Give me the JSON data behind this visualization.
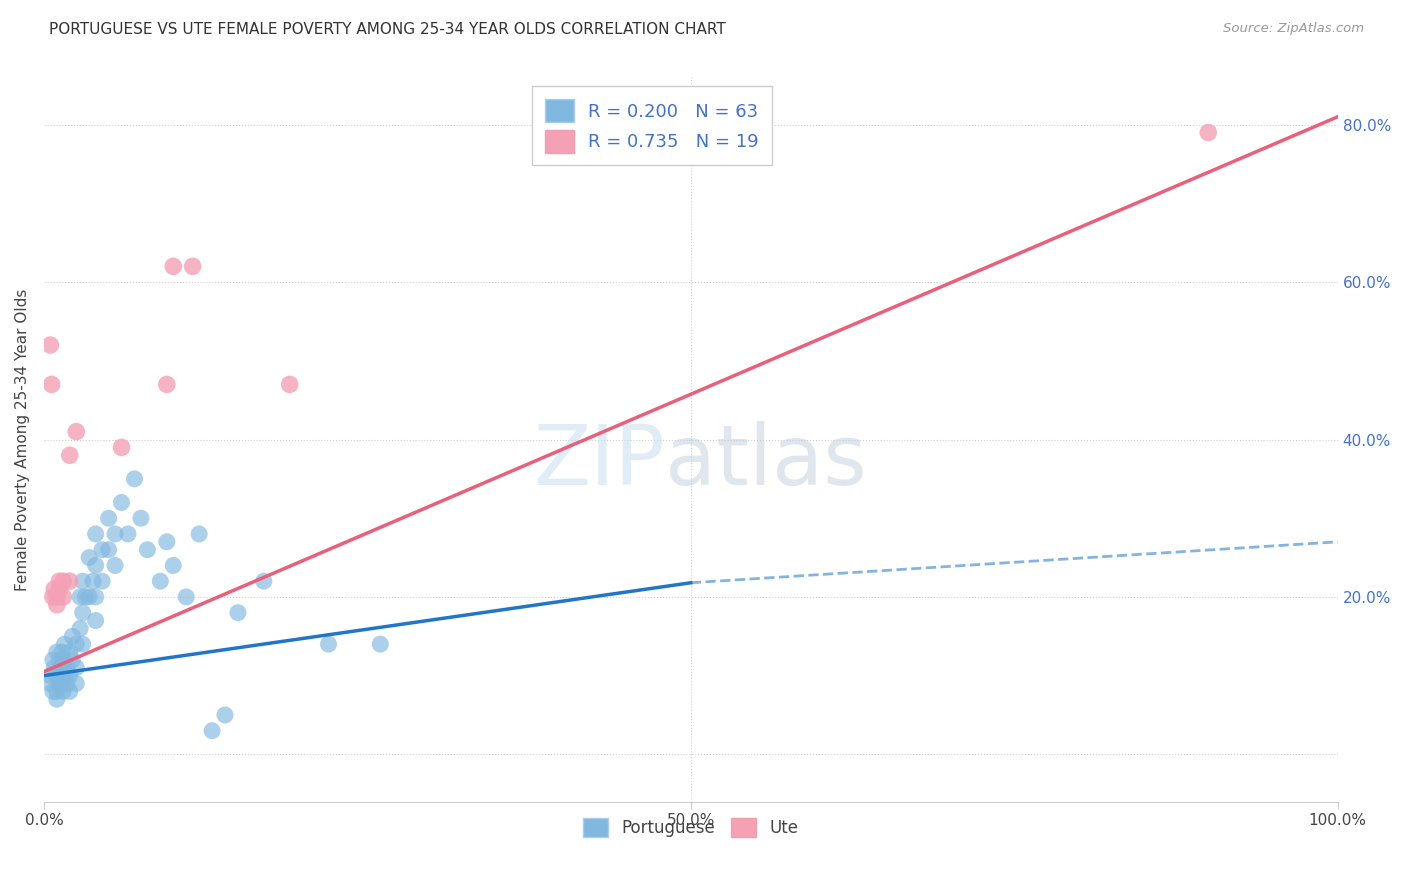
{
  "title": "PORTUGUESE VS UTE FEMALE POVERTY AMONG 25-34 YEAR OLDS CORRELATION CHART",
  "source": "Source: ZipAtlas.com",
  "ylabel": "Female Poverty Among 25-34 Year Olds",
  "watermark_zip": "ZIP",
  "watermark_atlas": "atlas",
  "R_portuguese": 0.2,
  "N_portuguese": 63,
  "R_ute": 0.735,
  "N_ute": 19,
  "portuguese_color": "#80b8e0",
  "ute_color": "#f4a0b5",
  "portuguese_line_color": "#2176c7",
  "ute_line_color": "#e8607a",
  "xlim": [
    0.0,
    1.0
  ],
  "ylim": [
    -0.06,
    0.86
  ],
  "yticks": [
    0.0,
    0.2,
    0.4,
    0.6,
    0.8
  ],
  "xticks": [
    0.0,
    0.5,
    1.0
  ],
  "portuguese_scatter": [
    [
      0.005,
      0.1
    ],
    [
      0.005,
      0.09
    ],
    [
      0.007,
      0.12
    ],
    [
      0.007,
      0.08
    ],
    [
      0.008,
      0.11
    ],
    [
      0.01,
      0.13
    ],
    [
      0.01,
      0.1
    ],
    [
      0.01,
      0.08
    ],
    [
      0.01,
      0.07
    ],
    [
      0.012,
      0.12
    ],
    [
      0.012,
      0.09
    ],
    [
      0.013,
      0.11
    ],
    [
      0.014,
      0.13
    ],
    [
      0.014,
      0.1
    ],
    [
      0.015,
      0.08
    ],
    [
      0.015,
      0.12
    ],
    [
      0.016,
      0.14
    ],
    [
      0.016,
      0.1
    ],
    [
      0.018,
      0.11
    ],
    [
      0.018,
      0.09
    ],
    [
      0.02,
      0.13
    ],
    [
      0.02,
      0.1
    ],
    [
      0.02,
      0.08
    ],
    [
      0.022,
      0.15
    ],
    [
      0.022,
      0.12
    ],
    [
      0.025,
      0.14
    ],
    [
      0.025,
      0.11
    ],
    [
      0.025,
      0.09
    ],
    [
      0.028,
      0.2
    ],
    [
      0.028,
      0.16
    ],
    [
      0.03,
      0.22
    ],
    [
      0.03,
      0.18
    ],
    [
      0.03,
      0.14
    ],
    [
      0.032,
      0.2
    ],
    [
      0.035,
      0.25
    ],
    [
      0.035,
      0.2
    ],
    [
      0.038,
      0.22
    ],
    [
      0.04,
      0.28
    ],
    [
      0.04,
      0.24
    ],
    [
      0.04,
      0.2
    ],
    [
      0.04,
      0.17
    ],
    [
      0.045,
      0.26
    ],
    [
      0.045,
      0.22
    ],
    [
      0.05,
      0.3
    ],
    [
      0.05,
      0.26
    ],
    [
      0.055,
      0.28
    ],
    [
      0.055,
      0.24
    ],
    [
      0.06,
      0.32
    ],
    [
      0.065,
      0.28
    ],
    [
      0.07,
      0.35
    ],
    [
      0.075,
      0.3
    ],
    [
      0.08,
      0.26
    ],
    [
      0.09,
      0.22
    ],
    [
      0.095,
      0.27
    ],
    [
      0.1,
      0.24
    ],
    [
      0.11,
      0.2
    ],
    [
      0.12,
      0.28
    ],
    [
      0.13,
      0.03
    ],
    [
      0.14,
      0.05
    ],
    [
      0.15,
      0.18
    ],
    [
      0.17,
      0.22
    ],
    [
      0.22,
      0.14
    ],
    [
      0.26,
      0.14
    ]
  ],
  "ute_scatter": [
    [
      0.005,
      0.52
    ],
    [
      0.006,
      0.47
    ],
    [
      0.007,
      0.2
    ],
    [
      0.008,
      0.21
    ],
    [
      0.01,
      0.2
    ],
    [
      0.01,
      0.19
    ],
    [
      0.012,
      0.21
    ],
    [
      0.012,
      0.22
    ],
    [
      0.015,
      0.22
    ],
    [
      0.015,
      0.2
    ],
    [
      0.02,
      0.38
    ],
    [
      0.02,
      0.22
    ],
    [
      0.025,
      0.41
    ],
    [
      0.06,
      0.39
    ],
    [
      0.095,
      0.47
    ],
    [
      0.1,
      0.62
    ],
    [
      0.115,
      0.62
    ],
    [
      0.19,
      0.47
    ],
    [
      0.9,
      0.79
    ]
  ],
  "port_line_x0": 0.0,
  "port_line_y0": 0.1,
  "port_line_x1": 0.5,
  "port_line_y1": 0.218,
  "port_line_x2": 1.0,
  "port_line_y2": 0.27,
  "ute_line_x0": 0.0,
  "ute_line_y0": 0.105,
  "ute_line_x1": 1.0,
  "ute_line_y1": 0.81
}
